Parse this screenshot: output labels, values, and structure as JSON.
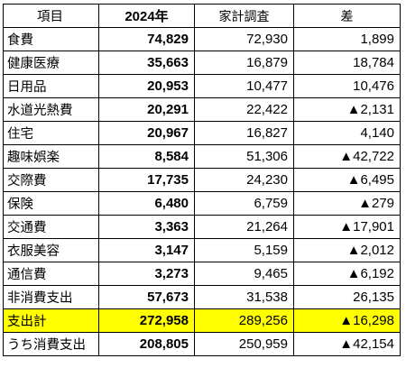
{
  "header": {
    "col_item": "項目",
    "col_2024": "2024年",
    "col_survey": "家計調査",
    "col_diff": "差"
  },
  "rows": [
    {
      "item": "食費",
      "v2024": "74,829",
      "survey": "72,930",
      "diff": "1,899"
    },
    {
      "item": "健康医療",
      "v2024": "35,663",
      "survey": "16,879",
      "diff": "18,784"
    },
    {
      "item": "日用品",
      "v2024": "20,953",
      "survey": "10,477",
      "diff": "10,476"
    },
    {
      "item": "水道光熱費",
      "v2024": "20,291",
      "survey": "22,422",
      "diff": "▲2,131"
    },
    {
      "item": "住宅",
      "v2024": "20,967",
      "survey": "16,827",
      "diff": "4,140"
    },
    {
      "item": "趣味娯楽",
      "v2024": "8,584",
      "survey": "51,306",
      "diff": "▲42,722"
    },
    {
      "item": "交際費",
      "v2024": "17,735",
      "survey": "24,230",
      "diff": "▲6,495"
    },
    {
      "item": "保険",
      "v2024": "6,480",
      "survey": "6,759",
      "diff": "▲279"
    },
    {
      "item": "交通費",
      "v2024": "3,363",
      "survey": "21,264",
      "diff": "▲17,901"
    },
    {
      "item": "衣服美容",
      "v2024": "3,147",
      "survey": "5,159",
      "diff": "▲2,012"
    },
    {
      "item": "通信費",
      "v2024": "3,273",
      "survey": "9,465",
      "diff": "▲6,192"
    },
    {
      "item": "非消費支出",
      "v2024": "57,673",
      "survey": "31,538",
      "diff": "26,135"
    },
    {
      "item": "支出計",
      "v2024": "272,958",
      "survey": "289,256",
      "diff": "▲16,298"
    },
    {
      "item": "うち消費支出",
      "v2024": "208,805",
      "survey": "250,959",
      "diff": "▲42,154"
    }
  ],
  "highlight_color": "#ffff00",
  "highlight_row_index": 12
}
